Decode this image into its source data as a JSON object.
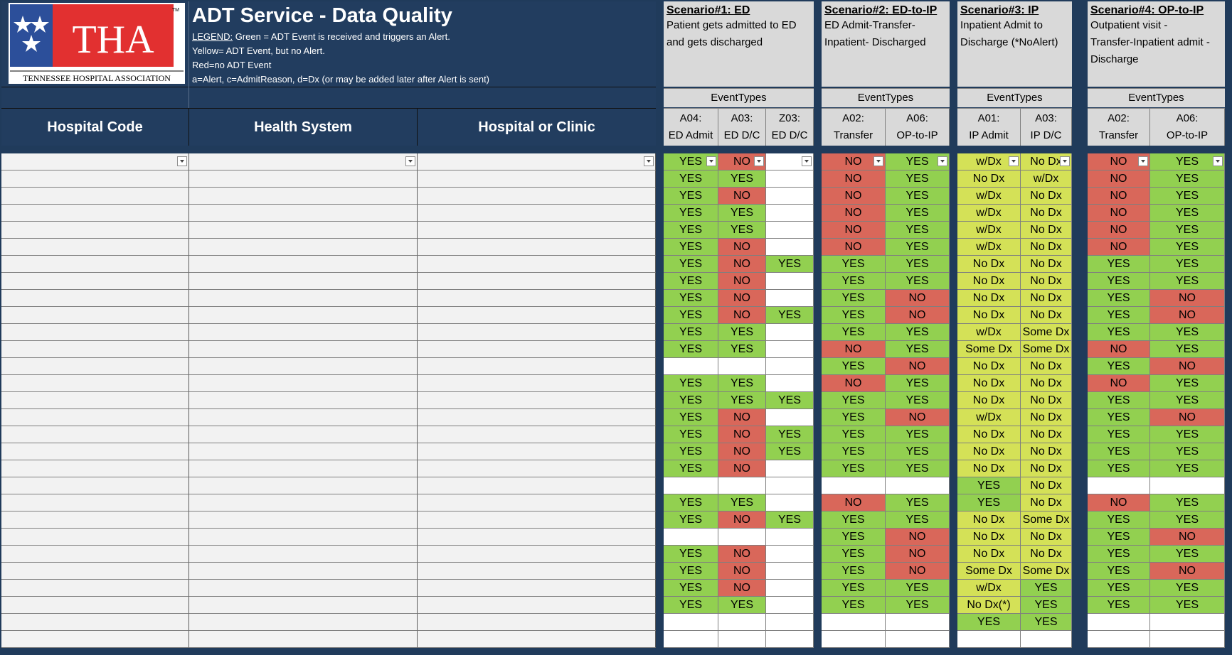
{
  "title": "ADT Service - Data Quality",
  "logo": {
    "text": "THA",
    "subtitle": "TENNESSEE HOSPITAL ASSOCIATION",
    "tm": "TM"
  },
  "legend": {
    "label": "LEGEND:",
    "line1": " Green = ADT Event is received and triggers an Alert.",
    "line2": "Yellow= ADT Event, but no Alert.",
    "line3": "Red=no ADT Event",
    "line4": "a=Alert, c=AdmitReason, d=Dx (or may be added later after Alert is sent)"
  },
  "columns": {
    "hospital_code": "Hospital Code",
    "health_system": "Health System",
    "hospital_or_clinic": "Hospital or Clinic"
  },
  "scenarios": [
    {
      "title": "Scenario#1: ED",
      "desc1": "Patient gets admitted to ED",
      "desc2": "and gets discharged",
      "desc3": "",
      "event_types": "EventTypes",
      "events": [
        {
          "code": "A04:",
          "name": "ED Admit"
        },
        {
          "code": "A03:",
          "name": "ED D/C"
        },
        {
          "code": "Z03:",
          "name": "ED D/C"
        }
      ]
    },
    {
      "title": "Scenario#2: ED-to-IP",
      "desc1": "ED Admit-Transfer-",
      "desc2": "Inpatient- Discharged",
      "desc3": "",
      "event_types": "EventTypes",
      "events": [
        {
          "code": "A02:",
          "name": "Transfer"
        },
        {
          "code": "A06:",
          "name": "OP-to-IP"
        }
      ]
    },
    {
      "title": "Scenario#3: IP",
      "desc1": "Inpatient Admit to",
      "desc2": "Discharge (*NoAlert)",
      "desc3": "",
      "event_types": "EventTypes",
      "events": [
        {
          "code": "A01:",
          "name": "IP Admit"
        },
        {
          "code": "A03:",
          "name": "IP D/C"
        }
      ]
    },
    {
      "title": "Scenario#4: OP-to-IP",
      "desc1": "Outpatient visit -",
      "desc2": "Transfer-Inpatient admit -",
      "desc3": "Discharge",
      "event_types": "EventTypes",
      "events": [
        {
          "code": "A02:",
          "name": "Transfer"
        },
        {
          "code": "A06:",
          "name": "OP-to-IP"
        }
      ]
    }
  ],
  "colors": {
    "green": "#92d050",
    "red": "#d9675a",
    "yellow": "#d4e157",
    "header": "#223d5f"
  },
  "rows": [
    [
      "YES",
      "NO",
      "",
      "NO",
      "YES",
      "w/Dx",
      "No Dx",
      "NO",
      "YES"
    ],
    [
      "YES",
      "YES",
      "",
      "NO",
      "YES",
      "No Dx",
      "w/Dx",
      "NO",
      "YES"
    ],
    [
      "YES",
      "NO",
      "",
      "NO",
      "YES",
      "w/Dx",
      "No Dx",
      "NO",
      "YES"
    ],
    [
      "YES",
      "YES",
      "",
      "NO",
      "YES",
      "w/Dx",
      "No Dx",
      "NO",
      "YES"
    ],
    [
      "YES",
      "YES",
      "",
      "NO",
      "YES",
      "w/Dx",
      "No Dx",
      "NO",
      "YES"
    ],
    [
      "YES",
      "NO",
      "",
      "NO",
      "YES",
      "w/Dx",
      "No Dx",
      "NO",
      "YES"
    ],
    [
      "YES",
      "NO",
      "YES",
      "YES",
      "YES",
      "No Dx",
      "No Dx",
      "YES",
      "YES"
    ],
    [
      "YES",
      "NO",
      "",
      "YES",
      "YES",
      "No Dx",
      "No Dx",
      "YES",
      "YES"
    ],
    [
      "YES",
      "NO",
      "",
      "YES",
      "NO",
      "No Dx",
      "No Dx",
      "YES",
      "NO"
    ],
    [
      "YES",
      "NO",
      "YES",
      "YES",
      "NO",
      "No Dx",
      "No Dx",
      "YES",
      "NO"
    ],
    [
      "YES",
      "YES",
      "",
      "YES",
      "YES",
      "w/Dx",
      "Some Dx",
      "YES",
      "YES"
    ],
    [
      "YES",
      "YES",
      "",
      "NO",
      "YES",
      "Some Dx",
      "Some Dx",
      "NO",
      "YES"
    ],
    [
      "",
      "",
      "",
      "YES",
      "NO",
      "No Dx",
      "No Dx",
      "YES",
      "NO"
    ],
    [
      "YES",
      "YES",
      "",
      "NO",
      "YES",
      "No Dx",
      "No Dx",
      "NO",
      "YES"
    ],
    [
      "YES",
      "YES",
      "YES",
      "YES",
      "YES",
      "No Dx",
      "No Dx",
      "YES",
      "YES"
    ],
    [
      "YES",
      "NO",
      "",
      "YES",
      "NO",
      "w/Dx",
      "No Dx",
      "YES",
      "NO"
    ],
    [
      "YES",
      "NO",
      "YES",
      "YES",
      "YES",
      "No Dx",
      "No Dx",
      "YES",
      "YES"
    ],
    [
      "YES",
      "NO",
      "YES",
      "YES",
      "YES",
      "No Dx",
      "No Dx",
      "YES",
      "YES"
    ],
    [
      "YES",
      "NO",
      "",
      "YES",
      "YES",
      "No Dx",
      "No Dx",
      "YES",
      "YES"
    ],
    [
      "",
      "",
      "",
      "",
      "",
      "YES",
      "No Dx",
      "",
      ""
    ],
    [
      "YES",
      "YES",
      "",
      "NO",
      "YES",
      "YES",
      "No Dx",
      "NO",
      "YES"
    ],
    [
      "YES",
      "NO",
      "YES",
      "YES",
      "YES",
      "No Dx",
      "Some Dx",
      "YES",
      "YES"
    ],
    [
      "",
      "",
      "",
      "YES",
      "NO",
      "No Dx",
      "No Dx",
      "YES",
      "NO"
    ],
    [
      "YES",
      "NO",
      "",
      "YES",
      "NO",
      "No Dx",
      "No Dx",
      "YES",
      "YES"
    ],
    [
      "YES",
      "NO",
      "",
      "YES",
      "NO",
      "Some Dx",
      "Some Dx",
      "YES",
      "NO"
    ],
    [
      "YES",
      "NO",
      "",
      "YES",
      "YES",
      "w/Dx",
      "YES",
      "YES",
      "YES"
    ],
    [
      "YES",
      "YES",
      "",
      "YES",
      "YES",
      "No Dx(*)",
      "YES",
      "YES",
      "YES"
    ],
    [
      "",
      "",
      "",
      "",
      "",
      "YES",
      "YES",
      "",
      ""
    ],
    [
      "",
      "",
      "",
      "",
      "",
      "",
      "",
      "",
      ""
    ]
  ]
}
